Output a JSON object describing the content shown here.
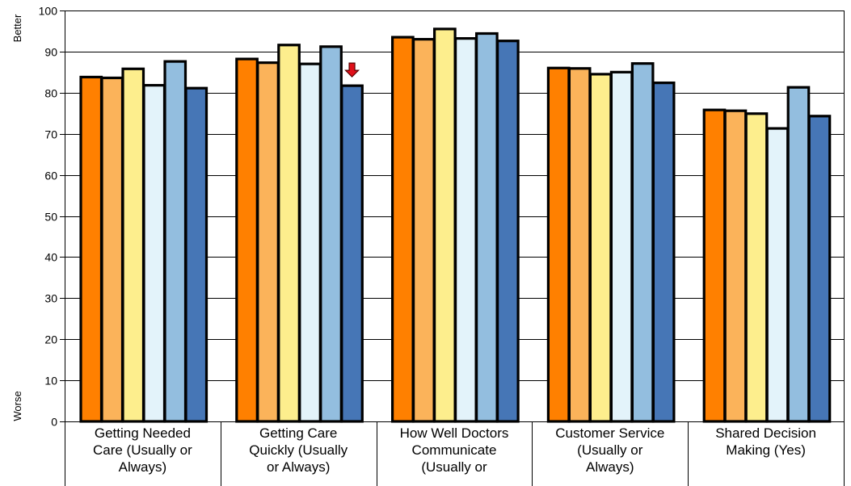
{
  "chart_data": {
    "type": "bar",
    "categories": [
      "Getting Needed\nCare (Usually or\nAlways)",
      "Getting Care\nQuickly (Usually\nor Always)",
      "How Well Doctors\nCommunicate\n(Usually or",
      "Customer Service\n(Usually or\nAlways)",
      "Shared Decision\nMaking (Yes)"
    ],
    "series": [
      {
        "color": "#ff8000",
        "values": [
          83.8,
          88.2,
          93.5,
          86.0,
          75.8
        ]
      },
      {
        "color": "#fbb35a",
        "values": [
          83.6,
          87.3,
          93.0,
          85.9,
          75.6
        ]
      },
      {
        "color": "#fdee8d",
        "values": [
          85.8,
          91.6,
          95.5,
          84.5,
          74.9
        ]
      },
      {
        "color": "#e3f3fa",
        "values": [
          81.8,
          87.0,
          93.2,
          85.0,
          71.3
        ]
      },
      {
        "color": "#93bedf",
        "values": [
          87.6,
          91.2,
          94.4,
          87.1,
          81.3
        ]
      },
      {
        "color": "#4676b6",
        "values": [
          81.1,
          81.7,
          92.6,
          82.4,
          74.3
        ]
      }
    ],
    "ylim": [
      0,
      100
    ],
    "yticks": [
      "0",
      "10",
      "20",
      "30",
      "40",
      "50",
      "60",
      "70",
      "80",
      "90",
      "100"
    ],
    "ylabel_top": "Better",
    "ylabel_bottom": "Worse",
    "grid": true,
    "annotations": [
      {
        "type": "down-arrow",
        "category_index": 1,
        "series_index": 5,
        "color": "#e0101a"
      }
    ]
  }
}
